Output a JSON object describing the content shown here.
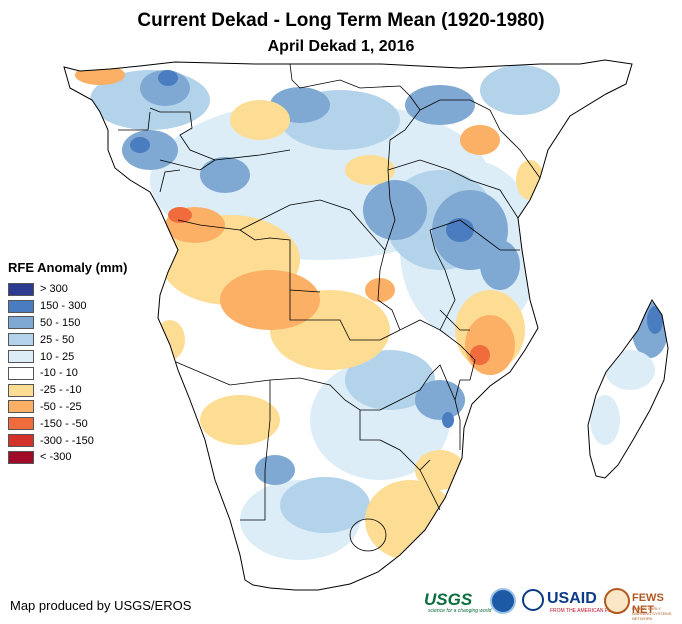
{
  "title": "Current Dekad - Long Term Mean (1920-1980)",
  "subtitle": "April Dekad 1, 2016",
  "legend": {
    "title": "RFE Anomaly (mm)",
    "items": [
      {
        "label": "> 300",
        "color": "#2c3a8f"
      },
      {
        "label": "150 - 300",
        "color": "#4a7dbf"
      },
      {
        "label": "50 - 150",
        "color": "#7fa8d3"
      },
      {
        "label": "25 - 50",
        "color": "#b3d3ea"
      },
      {
        "label": "10 - 25",
        "color": "#dcedf7"
      },
      {
        "label": "-10 - 10",
        "color": "#ffffff"
      },
      {
        "label": "-25 - -10",
        "color": "#fddc93"
      },
      {
        "label": "-50 - -25",
        "color": "#fbb066"
      },
      {
        "label": "-150 - -50",
        "color": "#f06c3c"
      },
      {
        "label": "-300 - -150",
        "color": "#d2322a"
      },
      {
        "label": "< -300",
        "color": "#a00c28"
      }
    ]
  },
  "credit": "Map produced by USGS/EROS",
  "logos": {
    "usgs": "USGS",
    "usgs_tagline": "science for a changing world",
    "usaid": "USAID",
    "usaid_tagline": "FROM THE AMERICAN PEOPLE",
    "fews": "FEWS NET",
    "fews_tagline": "FAMINE EARLY WARNING SYSTEMS NETWORK"
  }
}
